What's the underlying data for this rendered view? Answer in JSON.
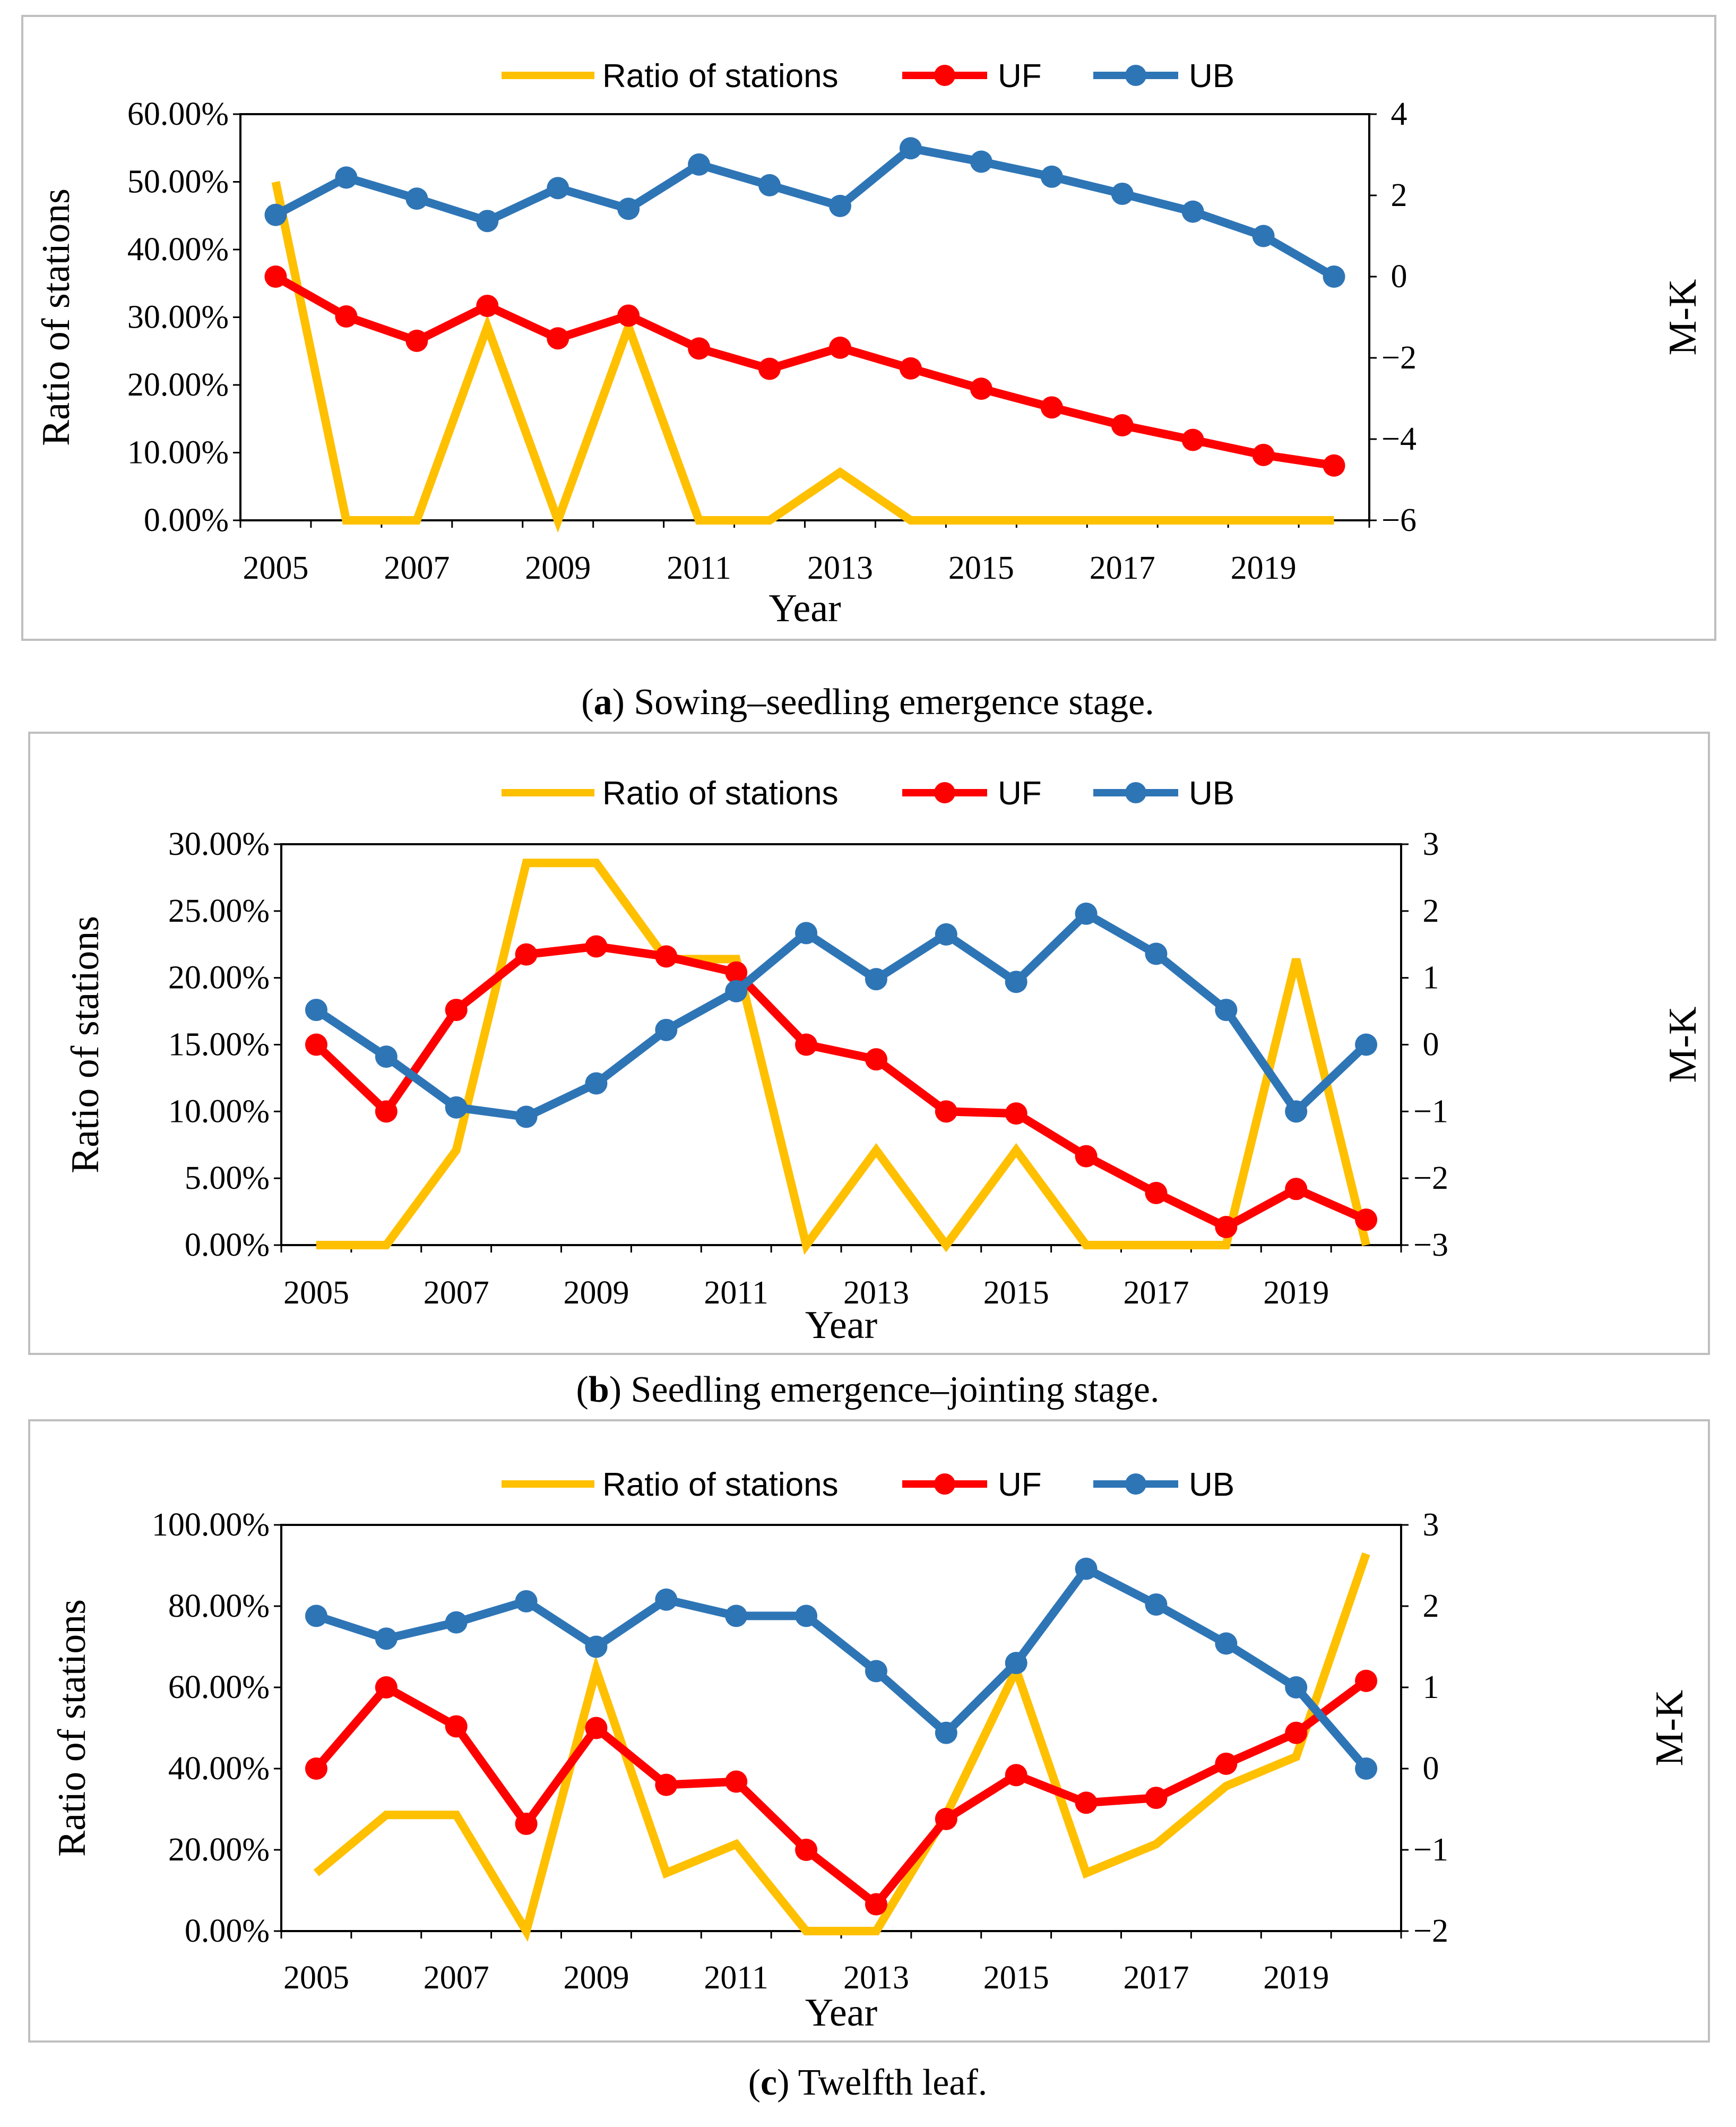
{
  "colors": {
    "ratio": "#FFC000",
    "uf": "#FF0000",
    "ub": "#2E75B6",
    "frame": "#bfbfbf"
  },
  "chart_data": [
    {
      "type": "line",
      "panel": "a",
      "caption_letter": "a",
      "caption_text": ") Sowing–seedling emergence stage.",
      "caption_open": "(",
      "xlabel": "Year",
      "ylabel": "Ratio of stations",
      "y2label": "M-K",
      "x": [
        2005,
        2006,
        2007,
        2008,
        2009,
        2010,
        2011,
        2012,
        2013,
        2014,
        2015,
        2016,
        2017,
        2018,
        2019,
        2020
      ],
      "xticks": [
        "2005",
        "2007",
        "2009",
        "2011",
        "2013",
        "2015",
        "2017",
        "2019"
      ],
      "ylim": [
        0,
        60
      ],
      "yticks": [
        "0.00%",
        "10.00%",
        "20.00%",
        "30.00%",
        "40.00%",
        "50.00%",
        "60.00%"
      ],
      "y2lim": [
        -6,
        4
      ],
      "y2ticks": [
        "−6",
        "−4",
        "−2",
        "0",
        "2",
        "4"
      ],
      "legend": [
        "Ratio of stations",
        "UF",
        "UB"
      ],
      "series": [
        {
          "name": "Ratio of stations",
          "axis": "left",
          "values": [
            50,
            0,
            0,
            28.6,
            0,
            28.6,
            0,
            0,
            7.1,
            0,
            0,
            0,
            0,
            0,
            0,
            0
          ]
        },
        {
          "name": "UF",
          "axis": "right",
          "values": [
            0,
            -0.98,
            -1.58,
            -0.72,
            -1.52,
            -0.96,
            -1.77,
            -2.27,
            -1.75,
            -2.26,
            -2.76,
            -3.22,
            -3.66,
            -4.02,
            -4.39,
            -4.65
          ]
        },
        {
          "name": "UB",
          "axis": "right",
          "values": [
            1.52,
            2.44,
            1.92,
            1.37,
            2.18,
            1.67,
            2.76,
            2.25,
            1.74,
            3.16,
            2.83,
            2.46,
            2.04,
            1.6,
            1.0,
            0
          ]
        }
      ]
    },
    {
      "type": "line",
      "panel": "b",
      "caption_letter": "b",
      "caption_text": ") Seedling emergence–jointing stage.",
      "caption_open": "(",
      "xlabel": "Year",
      "ylabel": "Ratio of stations",
      "y2label": "M-K",
      "x": [
        2005,
        2006,
        2007,
        2008,
        2009,
        2010,
        2011,
        2012,
        2013,
        2014,
        2015,
        2016,
        2017,
        2018,
        2019,
        2020
      ],
      "xticks": [
        "2005",
        "2007",
        "2009",
        "2011",
        "2013",
        "2015",
        "2017",
        "2019"
      ],
      "ylim": [
        0,
        30
      ],
      "yticks": [
        "0.00%",
        "5.00%",
        "10.00%",
        "15.00%",
        "20.00%",
        "25.00%",
        "30.00%"
      ],
      "y2lim": [
        -3,
        3
      ],
      "y2ticks": [
        "−3",
        "−2",
        "−1",
        "0",
        "1",
        "2",
        "3"
      ],
      "legend": [
        "Ratio of stations",
        "UF",
        "UB"
      ],
      "series": [
        {
          "name": "Ratio of stations",
          "axis": "left",
          "values": [
            0,
            0,
            7.1,
            28.6,
            28.6,
            21.4,
            21.4,
            0,
            7.1,
            0,
            7.1,
            0,
            0,
            0,
            21.4,
            0
          ]
        },
        {
          "name": "UF",
          "axis": "right",
          "values": [
            0,
            -1.0,
            0.52,
            1.35,
            1.47,
            1.32,
            1.08,
            0,
            -0.22,
            -1.0,
            -1.03,
            -1.67,
            -2.22,
            -2.73,
            -2.16,
            -2.62
          ]
        },
        {
          "name": "UB",
          "axis": "right",
          "values": [
            0.52,
            -0.18,
            -0.94,
            -1.08,
            -0.58,
            0.22,
            0.8,
            1.67,
            0.98,
            1.65,
            0.94,
            1.96,
            1.36,
            0.52,
            -1.0,
            0
          ]
        }
      ]
    },
    {
      "type": "line",
      "panel": "c",
      "caption_letter": "c",
      "caption_text": ") Twelfth leaf.",
      "caption_open": "(",
      "xlabel": "Year",
      "ylabel": "Ratio of stations",
      "y2label": "M-K",
      "x": [
        2005,
        2006,
        2007,
        2008,
        2009,
        2010,
        2011,
        2012,
        2013,
        2014,
        2015,
        2016,
        2017,
        2018,
        2019,
        2020
      ],
      "xticks": [
        "2005",
        "2007",
        "2009",
        "2011",
        "2013",
        "2015",
        "2017",
        "2019"
      ],
      "ylim": [
        0,
        100
      ],
      "yticks": [
        "0.00%",
        "20.00%",
        "40.00%",
        "60.00%",
        "80.00%",
        "100.00%"
      ],
      "y2lim": [
        -2,
        3
      ],
      "y2ticks": [
        "−2",
        "−1",
        "0",
        "1",
        "2",
        "3"
      ],
      "legend": [
        "Ratio of stations",
        "UF",
        "UB"
      ],
      "series": [
        {
          "name": "Ratio of stations",
          "axis": "left",
          "values": [
            14.3,
            28.6,
            28.6,
            0,
            64.3,
            14.3,
            21.4,
            0,
            0,
            28.6,
            64.3,
            14.3,
            21.4,
            35.7,
            42.9,
            92.9
          ]
        },
        {
          "name": "UF",
          "axis": "right",
          "values": [
            0,
            1.0,
            0.52,
            -0.68,
            0.5,
            -0.2,
            -0.16,
            -1.0,
            -1.67,
            -0.62,
            -0.08,
            -0.42,
            -0.36,
            0.06,
            0.44,
            1.08
          ]
        },
        {
          "name": "UB",
          "axis": "right",
          "values": [
            1.88,
            1.6,
            1.8,
            2.06,
            1.5,
            2.08,
            1.88,
            1.88,
            1.2,
            0.44,
            1.3,
            2.46,
            2.02,
            1.54,
            1.0,
            0
          ]
        }
      ]
    }
  ]
}
